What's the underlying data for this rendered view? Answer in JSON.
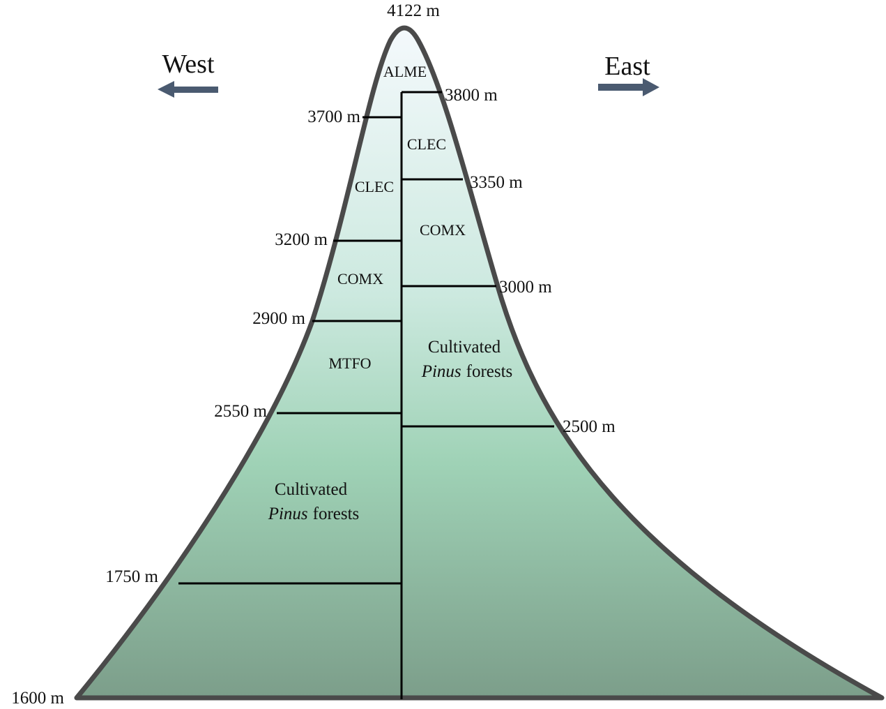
{
  "directions": {
    "west": "West",
    "east": "East"
  },
  "summit": "4122 m",
  "west_elevations": [
    "3700 m",
    "3200 m",
    "2900 m",
    "2550 m",
    "1750 m",
    "1600 m"
  ],
  "east_elevations": [
    "3800 m",
    "3350 m",
    "3000 m",
    "2500 m"
  ],
  "zones": {
    "top": "ALME",
    "west": [
      "CLEC",
      "COMX",
      "MTFO"
    ],
    "east": [
      "CLEC",
      "COMX"
    ]
  },
  "cultivated": {
    "west": {
      "line1": "Cultivated",
      "italic": "Pinus",
      "rest": "forests"
    },
    "east": {
      "line1": "Cultivated",
      "italic": "Pinus",
      "rest": "forests"
    }
  }
}
